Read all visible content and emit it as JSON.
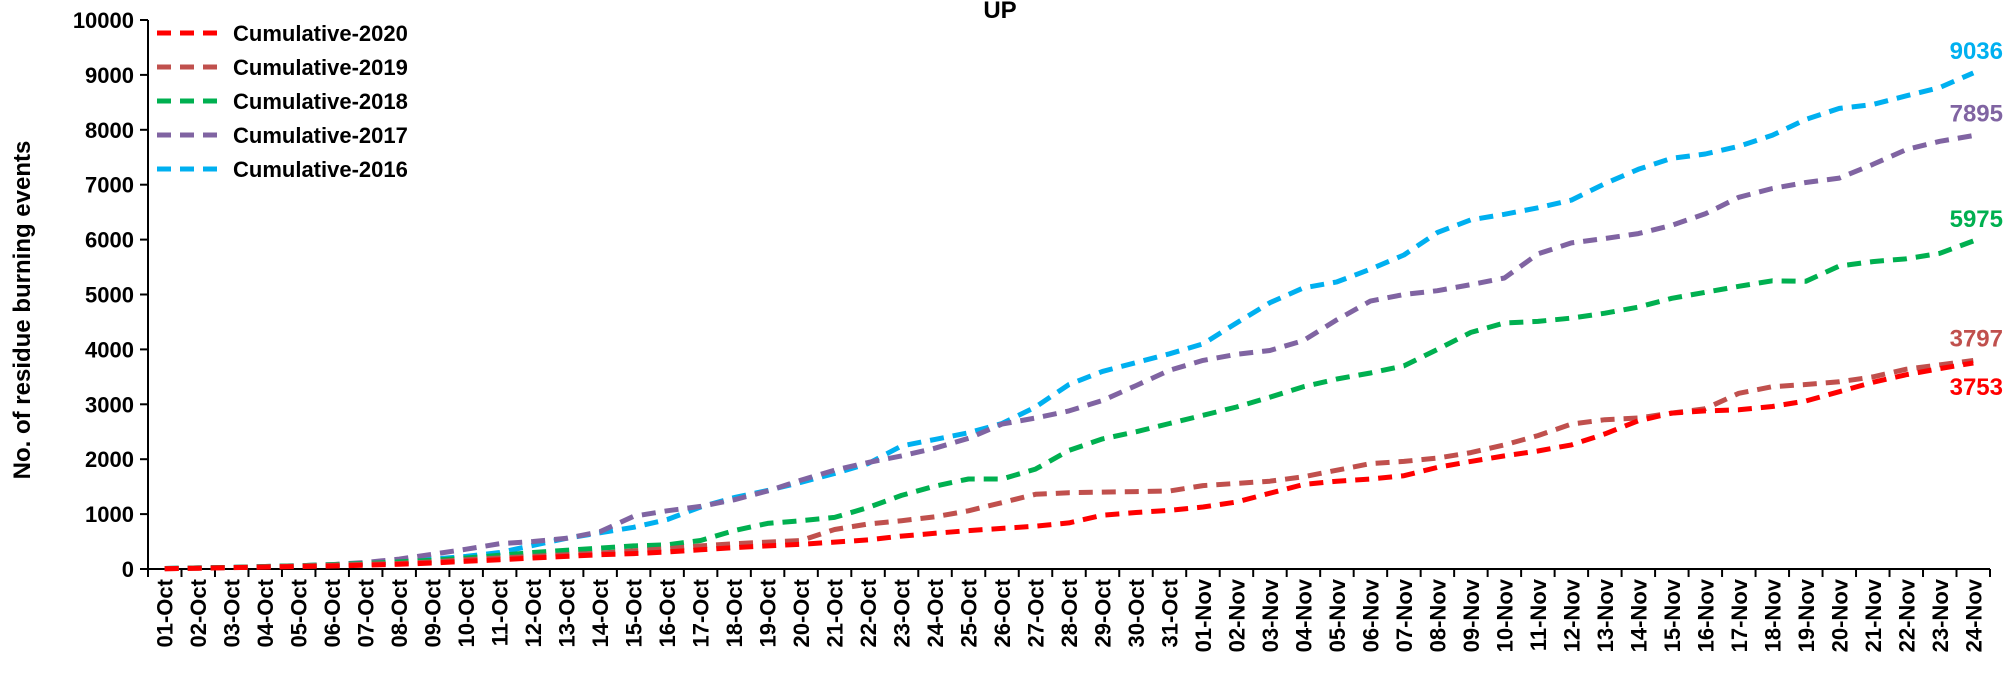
{
  "chart_data": {
    "type": "line",
    "title": "UP",
    "xlabel": "",
    "ylabel": "No. of residue burning events",
    "ylim": [
      0,
      10000
    ],
    "yticks": [
      0,
      1000,
      2000,
      3000,
      4000,
      5000,
      6000,
      7000,
      8000,
      9000,
      10000
    ],
    "grid": false,
    "legend_position": "top-left",
    "categories": [
      "01-Oct",
      "02-Oct",
      "03-Oct",
      "04-Oct",
      "05-Oct",
      "06-Oct",
      "07-Oct",
      "08-Oct",
      "09-Oct",
      "10-Oct",
      "11-Oct",
      "12-Oct",
      "13-Oct",
      "14-Oct",
      "15-Oct",
      "16-Oct",
      "17-Oct",
      "18-Oct",
      "19-Oct",
      "20-Oct",
      "21-Oct",
      "22-Oct",
      "23-Oct",
      "24-Oct",
      "25-Oct",
      "26-Oct",
      "27-Oct",
      "28-Oct",
      "29-Oct",
      "30-Oct",
      "31-Oct",
      "01-Nov",
      "02-Nov",
      "03-Nov",
      "04-Nov",
      "05-Nov",
      "06-Nov",
      "07-Nov",
      "08-Nov",
      "09-Nov",
      "10-Nov",
      "11-Nov",
      "12-Nov",
      "13-Nov",
      "14-Nov",
      "15-Nov",
      "16-Nov",
      "17-Nov",
      "18-Nov",
      "19-Nov",
      "20-Nov",
      "21-Nov",
      "22-Nov",
      "23-Nov",
      "24-Nov"
    ],
    "series": [
      {
        "name": "Cumulative-2020",
        "color": "#FF0000",
        "end_label": "3753",
        "values": [
          5,
          15,
          25,
          35,
          45,
          55,
          70,
          85,
          110,
          140,
          170,
          200,
          230,
          260,
          280,
          310,
          350,
          390,
          420,
          450,
          490,
          530,
          600,
          650,
          700,
          740,
          780,
          840,
          980,
          1030,
          1070,
          1130,
          1220,
          1380,
          1540,
          1600,
          1640,
          1700,
          1850,
          1960,
          2060,
          2150,
          2260,
          2460,
          2700,
          2840,
          2880,
          2900,
          2960,
          3060,
          3230,
          3400,
          3540,
          3650,
          3753
        ]
      },
      {
        "name": "Cumulative-2019",
        "color": "#C0504D",
        "end_label": "3797",
        "values": [
          5,
          15,
          25,
          40,
          55,
          70,
          85,
          100,
          130,
          170,
          200,
          230,
          260,
          290,
          330,
          370,
          420,
          460,
          490,
          520,
          720,
          820,
          880,
          950,
          1060,
          1210,
          1360,
          1390,
          1400,
          1410,
          1420,
          1520,
          1560,
          1600,
          1680,
          1800,
          1920,
          1960,
          2020,
          2120,
          2260,
          2430,
          2640,
          2720,
          2750,
          2840,
          2920,
          3200,
          3320,
          3360,
          3410,
          3500,
          3640,
          3720,
          3797
        ]
      },
      {
        "name": "Cumulative-2018",
        "color": "#00B050",
        "end_label": "5975",
        "values": [
          10,
          20,
          30,
          45,
          60,
          80,
          100,
          130,
          160,
          200,
          250,
          300,
          340,
          380,
          420,
          440,
          520,
          700,
          830,
          880,
          940,
          1120,
          1340,
          1510,
          1640,
          1640,
          1820,
          2160,
          2370,
          2500,
          2650,
          2800,
          2950,
          3130,
          3320,
          3460,
          3570,
          3700,
          4000,
          4310,
          4480,
          4510,
          4570,
          4660,
          4770,
          4930,
          5040,
          5150,
          5250,
          5240,
          5520,
          5600,
          5650,
          5750,
          5975
        ]
      },
      {
        "name": "Cumulative-2017",
        "color": "#8064A2",
        "end_label": "7895",
        "values": [
          10,
          20,
          30,
          45,
          60,
          80,
          120,
          180,
          270,
          360,
          460,
          500,
          560,
          680,
          960,
          1060,
          1140,
          1260,
          1420,
          1620,
          1800,
          1940,
          2060,
          2200,
          2380,
          2640,
          2750,
          2880,
          3070,
          3340,
          3620,
          3800,
          3910,
          3980,
          4160,
          4540,
          4880,
          5000,
          5070,
          5180,
          5300,
          5740,
          5940,
          6020,
          6110,
          6260,
          6470,
          6770,
          6930,
          7040,
          7120,
          7370,
          7640,
          7790,
          7895
        ]
      },
      {
        "name": "Cumulative-2016",
        "color": "#00B0F0",
        "end_label": "9036",
        "values": [
          10,
          20,
          30,
          45,
          60,
          80,
          100,
          130,
          180,
          230,
          300,
          430,
          560,
          660,
          760,
          900,
          1130,
          1300,
          1430,
          1580,
          1740,
          1920,
          2240,
          2360,
          2480,
          2650,
          2950,
          3360,
          3600,
          3760,
          3920,
          4100,
          4480,
          4850,
          5120,
          5230,
          5460,
          5720,
          6130,
          6360,
          6460,
          6580,
          6720,
          7020,
          7280,
          7480,
          7560,
          7700,
          7900,
          8190,
          8390,
          8460,
          8620,
          8770,
          9036
        ]
      }
    ]
  }
}
